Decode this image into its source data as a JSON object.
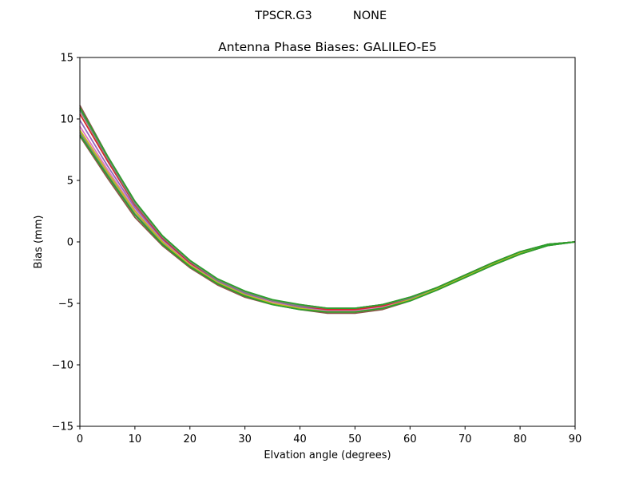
{
  "chart_data": {
    "type": "line",
    "suptitle": {
      "antenna": "TPSCR.G3",
      "radome": "NONE"
    },
    "title": "Antenna Phase Biases: GALILEO-E5",
    "xlabel": "Elvation angle (degrees)",
    "ylabel": "Bias (mm)",
    "xlim": [
      0,
      90
    ],
    "ylim": [
      -15,
      15
    ],
    "xticks": [
      0,
      10,
      20,
      30,
      40,
      50,
      60,
      70,
      80,
      90
    ],
    "yticks": [
      -15,
      -10,
      -5,
      0,
      5,
      10,
      15
    ],
    "ytick_labels": [
      "−15",
      "−10",
      "−5",
      "0",
      "5",
      "10",
      "15"
    ],
    "grid": false,
    "legend": "none",
    "x": [
      0,
      5,
      10,
      15,
      20,
      25,
      30,
      35,
      40,
      45,
      50,
      55,
      60,
      65,
      70,
      75,
      80,
      85,
      90
    ],
    "series": [
      {
        "color": "#8c564b",
        "values": [
          8.6,
          5.2,
          2.0,
          -0.3,
          -2.1,
          -3.5,
          -4.5,
          -5.1,
          -5.5,
          -5.8,
          -5.8,
          -5.5,
          -4.8,
          -3.9,
          -2.9,
          -1.9,
          -1.0,
          -0.3,
          0.0
        ]
      },
      {
        "color": "#7f7f7f",
        "values": [
          8.9,
          5.5,
          2.3,
          -0.1,
          -1.9,
          -3.3,
          -4.3,
          -5.0,
          -5.4,
          -5.7,
          -5.7,
          -5.4,
          -4.8,
          -3.9,
          -2.9,
          -1.9,
          -1.0,
          -0.3,
          0.0
        ]
      },
      {
        "color": "#e377c2",
        "values": [
          9.4,
          5.9,
          2.6,
          0.1,
          -1.8,
          -3.2,
          -4.3,
          -4.9,
          -5.3,
          -5.6,
          -5.6,
          -5.3,
          -4.7,
          -3.8,
          -2.8,
          -1.8,
          -0.9,
          -0.2,
          0.0
        ]
      },
      {
        "color": "#9467bd",
        "values": [
          9.9,
          6.2,
          2.8,
          0.2,
          -1.7,
          -3.2,
          -4.2,
          -4.8,
          -5.3,
          -5.5,
          -5.5,
          -5.2,
          -4.6,
          -3.7,
          -2.7,
          -1.7,
          -0.9,
          -0.2,
          0.0
        ]
      },
      {
        "color": "#d62728",
        "values": [
          10.4,
          6.6,
          3.0,
          0.3,
          -1.7,
          -3.1,
          -4.1,
          -4.8,
          -5.2,
          -5.5,
          -5.5,
          -5.2,
          -4.6,
          -3.7,
          -2.7,
          -1.7,
          -0.9,
          -0.2,
          0.0
        ]
      },
      {
        "color": "#bcbd22",
        "values": [
          9.1,
          5.7,
          2.5,
          0.0,
          -1.9,
          -3.3,
          -4.3,
          -5.0,
          -5.4,
          -5.7,
          -5.7,
          -5.4,
          -4.7,
          -3.8,
          -2.8,
          -1.8,
          -0.9,
          -0.2,
          0.0
        ]
      },
      {
        "color": "#8c564b",
        "values": [
          11.1,
          7.0,
          3.3,
          0.4,
          -1.6,
          -3.1,
          -4.1,
          -4.8,
          -5.1,
          -5.4,
          -5.4,
          -5.1,
          -4.5,
          -3.7,
          -2.7,
          -1.7,
          -0.8,
          -0.2,
          0.0
        ]
      },
      {
        "color": "#7f7f7f",
        "values": [
          10.7,
          6.8,
          3.1,
          0.4,
          -1.6,
          -3.1,
          -4.1,
          -4.8,
          -5.2,
          -5.4,
          -5.4,
          -5.1,
          -4.6,
          -3.7,
          -2.7,
          -1.7,
          -0.8,
          -0.2,
          0.0
        ]
      },
      {
        "color": "#2ca02c",
        "values": [
          8.7,
          5.4,
          2.2,
          -0.2,
          -2.0,
          -3.4,
          -4.4,
          -5.1,
          -5.5,
          -5.7,
          -5.7,
          -5.4,
          -4.8,
          -3.9,
          -2.9,
          -1.9,
          -1.0,
          -0.3,
          0.0
        ]
      },
      {
        "color": "#2ca02c",
        "values": [
          10.9,
          7.0,
          3.3,
          0.5,
          -1.5,
          -3.0,
          -4.0,
          -4.7,
          -5.1,
          -5.4,
          -5.4,
          -5.1,
          -4.5,
          -3.7,
          -2.7,
          -1.7,
          -0.8,
          -0.2,
          0.0
        ]
      }
    ]
  }
}
